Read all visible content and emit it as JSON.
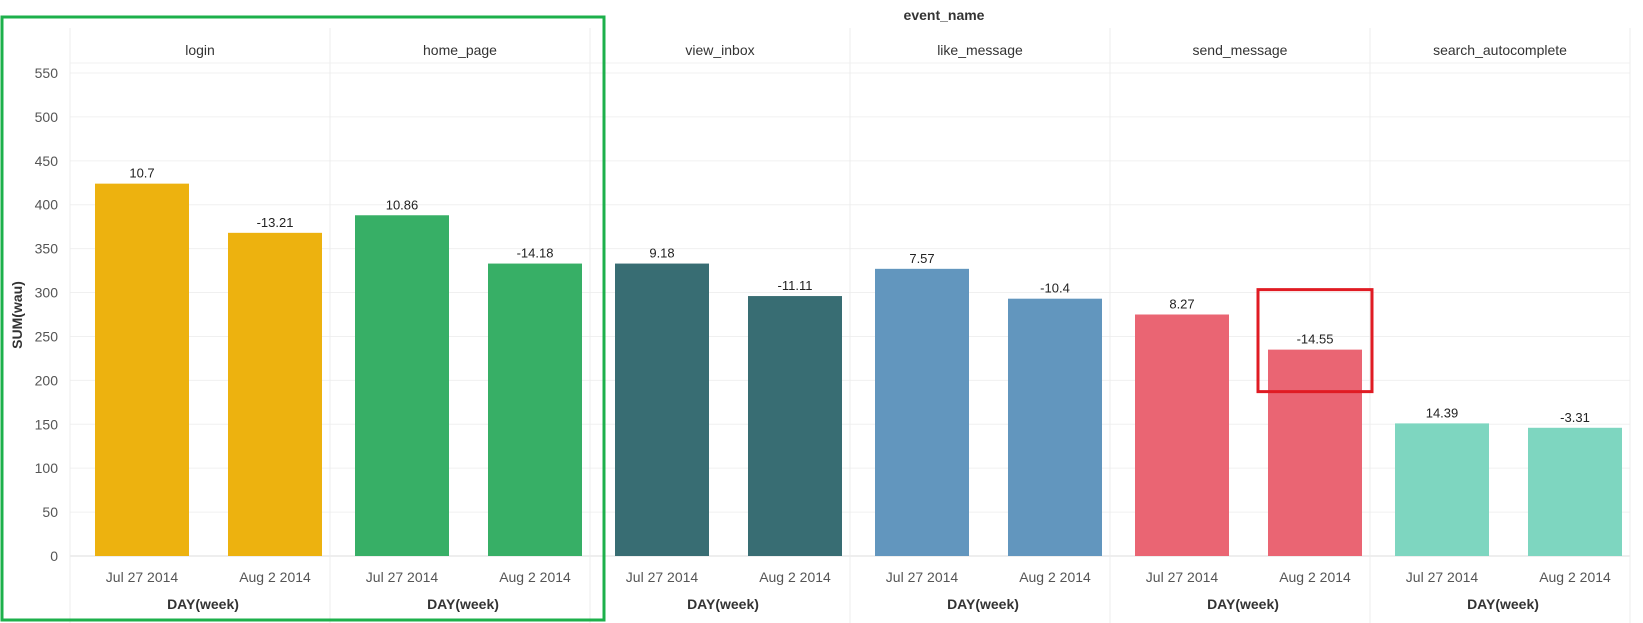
{
  "chart_data": {
    "type": "bar",
    "title": "event_name",
    "ylabel": "SUM(wau)",
    "xlabel": "DAY(week)",
    "ylim": [
      0,
      550
    ],
    "yticks": [
      0,
      50,
      100,
      150,
      200,
      250,
      300,
      350,
      400,
      450,
      500,
      550
    ],
    "categories": [
      "Jul 27 2014",
      "Aug 2 2014"
    ],
    "facets": [
      {
        "name": "login",
        "color": "#EDB20F",
        "values": [
          424,
          368
        ],
        "labels": [
          "10.7",
          "-13.21"
        ]
      },
      {
        "name": "home_page",
        "color": "#37AF66",
        "values": [
          388,
          333
        ],
        "labels": [
          "10.86",
          "-14.18"
        ]
      },
      {
        "name": "view_inbox",
        "color": "#386D73",
        "values": [
          333,
          296
        ],
        "labels": [
          "9.18",
          "-11.11"
        ]
      },
      {
        "name": "like_message",
        "color": "#6296BE",
        "values": [
          327,
          293
        ],
        "labels": [
          "7.57",
          "-10.4"
        ]
      },
      {
        "name": "send_message",
        "color": "#EA6573",
        "values": [
          275,
          235
        ],
        "labels": [
          "8.27",
          "-14.55"
        ]
      },
      {
        "name": "search_autocomplete",
        "color": "#7ED6C0",
        "values": [
          151,
          146
        ],
        "labels": [
          "14.39",
          "-3.31"
        ]
      }
    ],
    "grid": true,
    "annotations": {
      "highlight_group_color": "#1DB04B",
      "highlight_bar_color": "#E01B23"
    }
  }
}
